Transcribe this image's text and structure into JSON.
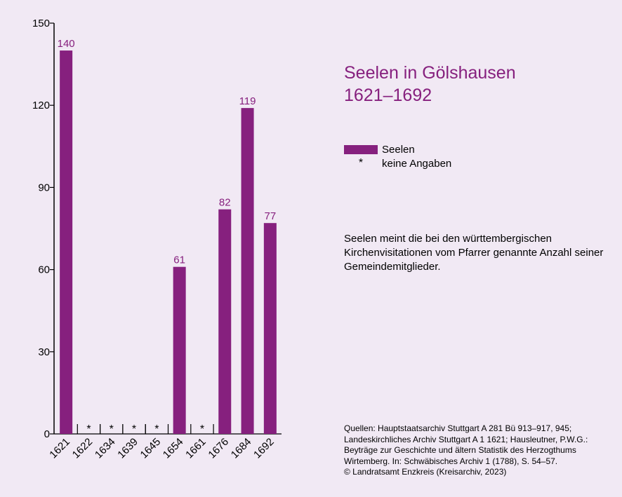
{
  "chart_data": {
    "type": "bar",
    "title": "Seelen in Gölshausen",
    "subtitle": "1621–1692",
    "categories": [
      "1621",
      "1622",
      "1634",
      "1639",
      "1645",
      "1654",
      "1661",
      "1676",
      "1684",
      "1692"
    ],
    "series": [
      {
        "name": "Seelen",
        "values": [
          140,
          null,
          null,
          null,
          null,
          61,
          null,
          82,
          119,
          77
        ]
      }
    ],
    "missing_marker": "*",
    "ylim": [
      0,
      150
    ],
    "yticks": [
      0,
      30,
      60,
      90,
      120,
      150
    ],
    "xlabel": "",
    "ylabel": "",
    "grid": false,
    "legend_position": "right",
    "bar_color": "#86207e"
  },
  "legend": {
    "series_label": "Seelen",
    "missing_symbol": "*",
    "missing_label": "keine Angaben"
  },
  "note": "Seelen meint die bei den württembergischen Kirchenvisitationen vom Pfarrer genannte Anzahl seiner Gemeindemitglieder.",
  "sources": [
    "Quellen: Hauptstaatsarchiv Stuttgart A 281 Bü 913–917, 945;",
    "Landeskirchliches Archiv Stuttgart A 1 1621; Hausleutner, P.W.G.:",
    "Beyträge zur Geschichte und ältern Statistik des Herzogthums",
    "Wirtemberg. In: Schwäbisches Archiv 1 (1788), S. 54–57.",
    "© Landratsamt Enzkreis (Kreisarchiv, 2023)"
  ]
}
